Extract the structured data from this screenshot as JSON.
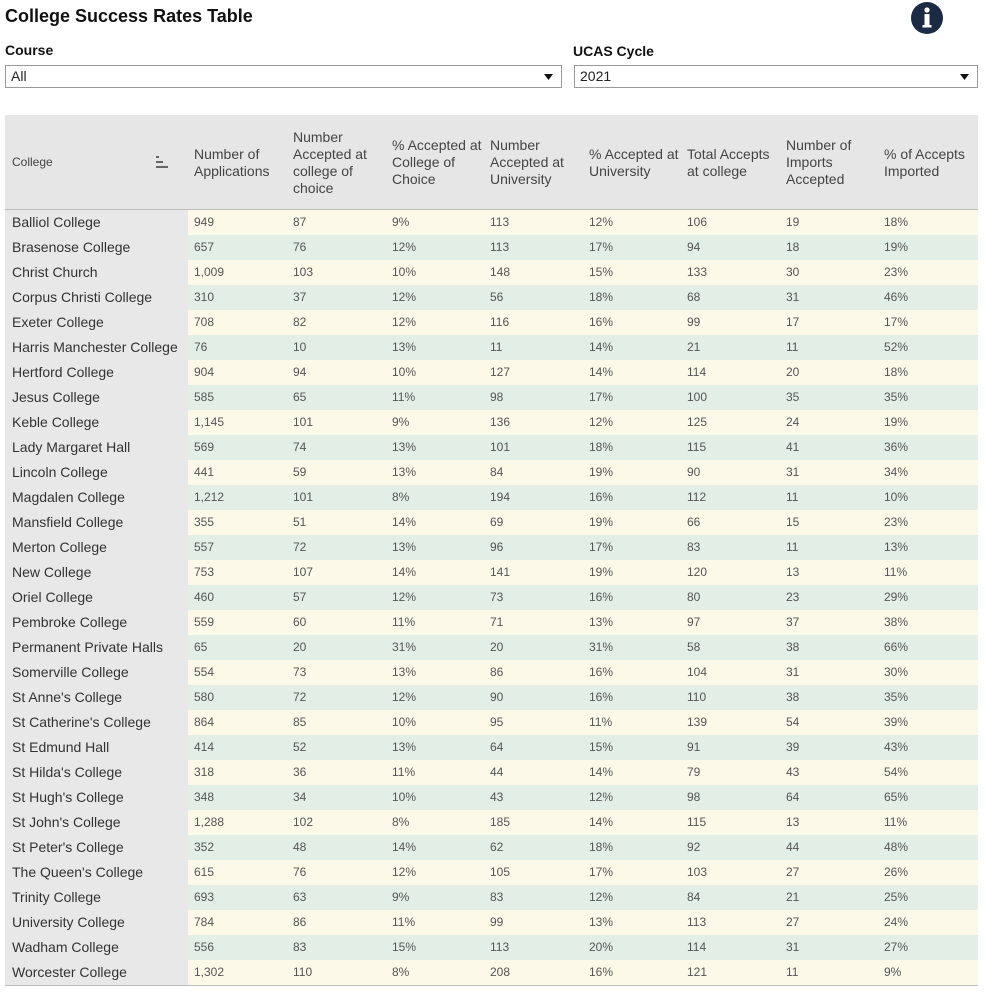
{
  "header": {
    "title": "College Success Rates Table"
  },
  "filters": [
    {
      "label": "Course",
      "value": "All"
    },
    {
      "label": "UCAS Cycle",
      "value": "2021"
    }
  ],
  "table": {
    "columns": [
      "College",
      "Number of Applications",
      "Number Accepted at college of choice",
      "% Accepted at College of Choice",
      "Number Accepted at University",
      "% Accepted at University",
      "Total Accepts at college",
      "Number of Imports Accepted",
      "% of Accepts Imported"
    ],
    "rows": [
      [
        "Balliol College",
        "949",
        "87",
        "9%",
        "113",
        "12%",
        "106",
        "19",
        "18%"
      ],
      [
        "Brasenose College",
        "657",
        "76",
        "12%",
        "113",
        "17%",
        "94",
        "18",
        "19%"
      ],
      [
        "Christ Church",
        "1,009",
        "103",
        "10%",
        "148",
        "15%",
        "133",
        "30",
        "23%"
      ],
      [
        "Corpus Christi College",
        "310",
        "37",
        "12%",
        "56",
        "18%",
        "68",
        "31",
        "46%"
      ],
      [
        "Exeter College",
        "708",
        "82",
        "12%",
        "116",
        "16%",
        "99",
        "17",
        "17%"
      ],
      [
        "Harris Manchester College",
        "76",
        "10",
        "13%",
        "11",
        "14%",
        "21",
        "11",
        "52%"
      ],
      [
        "Hertford College",
        "904",
        "94",
        "10%",
        "127",
        "14%",
        "114",
        "20",
        "18%"
      ],
      [
        "Jesus College",
        "585",
        "65",
        "11%",
        "98",
        "17%",
        "100",
        "35",
        "35%"
      ],
      [
        "Keble College",
        "1,145",
        "101",
        "9%",
        "136",
        "12%",
        "125",
        "24",
        "19%"
      ],
      [
        "Lady Margaret Hall",
        "569",
        "74",
        "13%",
        "101",
        "18%",
        "115",
        "41",
        "36%"
      ],
      [
        "Lincoln College",
        "441",
        "59",
        "13%",
        "84",
        "19%",
        "90",
        "31",
        "34%"
      ],
      [
        "Magdalen College",
        "1,212",
        "101",
        "8%",
        "194",
        "16%",
        "112",
        "11",
        "10%"
      ],
      [
        "Mansfield College",
        "355",
        "51",
        "14%",
        "69",
        "19%",
        "66",
        "15",
        "23%"
      ],
      [
        "Merton College",
        "557",
        "72",
        "13%",
        "96",
        "17%",
        "83",
        "11",
        "13%"
      ],
      [
        "New College",
        "753",
        "107",
        "14%",
        "141",
        "19%",
        "120",
        "13",
        "11%"
      ],
      [
        "Oriel College",
        "460",
        "57",
        "12%",
        "73",
        "16%",
        "80",
        "23",
        "29%"
      ],
      [
        "Pembroke College",
        "559",
        "60",
        "11%",
        "71",
        "13%",
        "97",
        "37",
        "38%"
      ],
      [
        "Permanent Private Halls",
        "65",
        "20",
        "31%",
        "20",
        "31%",
        "58",
        "38",
        "66%"
      ],
      [
        "Somerville College",
        "554",
        "73",
        "13%",
        "86",
        "16%",
        "104",
        "31",
        "30%"
      ],
      [
        "St Anne's College",
        "580",
        "72",
        "12%",
        "90",
        "16%",
        "110",
        "38",
        "35%"
      ],
      [
        "St Catherine's College",
        "864",
        "85",
        "10%",
        "95",
        "11%",
        "139",
        "54",
        "39%"
      ],
      [
        "St Edmund Hall",
        "414",
        "52",
        "13%",
        "64",
        "15%",
        "91",
        "39",
        "43%"
      ],
      [
        "St Hilda's College",
        "318",
        "36",
        "11%",
        "44",
        "14%",
        "79",
        "43",
        "54%"
      ],
      [
        "St Hugh's College",
        "348",
        "34",
        "10%",
        "43",
        "12%",
        "98",
        "64",
        "65%"
      ],
      [
        "St John's College",
        "1,288",
        "102",
        "8%",
        "185",
        "14%",
        "115",
        "13",
        "11%"
      ],
      [
        "St Peter's College",
        "352",
        "48",
        "14%",
        "62",
        "18%",
        "92",
        "44",
        "48%"
      ],
      [
        "The Queen's College",
        "615",
        "76",
        "12%",
        "105",
        "17%",
        "103",
        "27",
        "26%"
      ],
      [
        "Trinity College",
        "693",
        "63",
        "9%",
        "83",
        "12%",
        "84",
        "21",
        "25%"
      ],
      [
        "University College",
        "784",
        "86",
        "11%",
        "99",
        "13%",
        "113",
        "27",
        "24%"
      ],
      [
        "Wadham College",
        "556",
        "83",
        "15%",
        "113",
        "20%",
        "114",
        "31",
        "27%"
      ],
      [
        "Worcester College",
        "1,302",
        "110",
        "8%",
        "208",
        "16%",
        "121",
        "11",
        "9%"
      ]
    ]
  }
}
